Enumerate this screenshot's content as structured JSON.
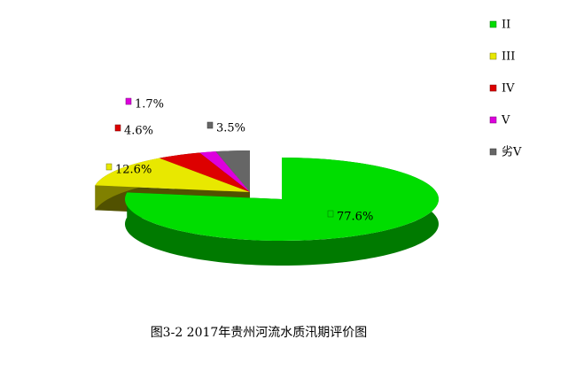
{
  "chart_data": {
    "type": "pie",
    "title": "图3-2  2017年贵州河流水质汛期评价图",
    "categories": [
      "II",
      "III",
      "IV",
      "V",
      "劣V"
    ],
    "values": [
      77.6,
      12.6,
      4.6,
      1.7,
      3.5
    ],
    "value_labels": [
      "77.6%",
      "12.6%",
      "4.6%",
      "1.7%",
      "3.5%"
    ],
    "colors": [
      "#00dd00",
      "#e8e800",
      "#dd0000",
      "#dd00dd",
      "#666666"
    ],
    "legend": "right"
  }
}
